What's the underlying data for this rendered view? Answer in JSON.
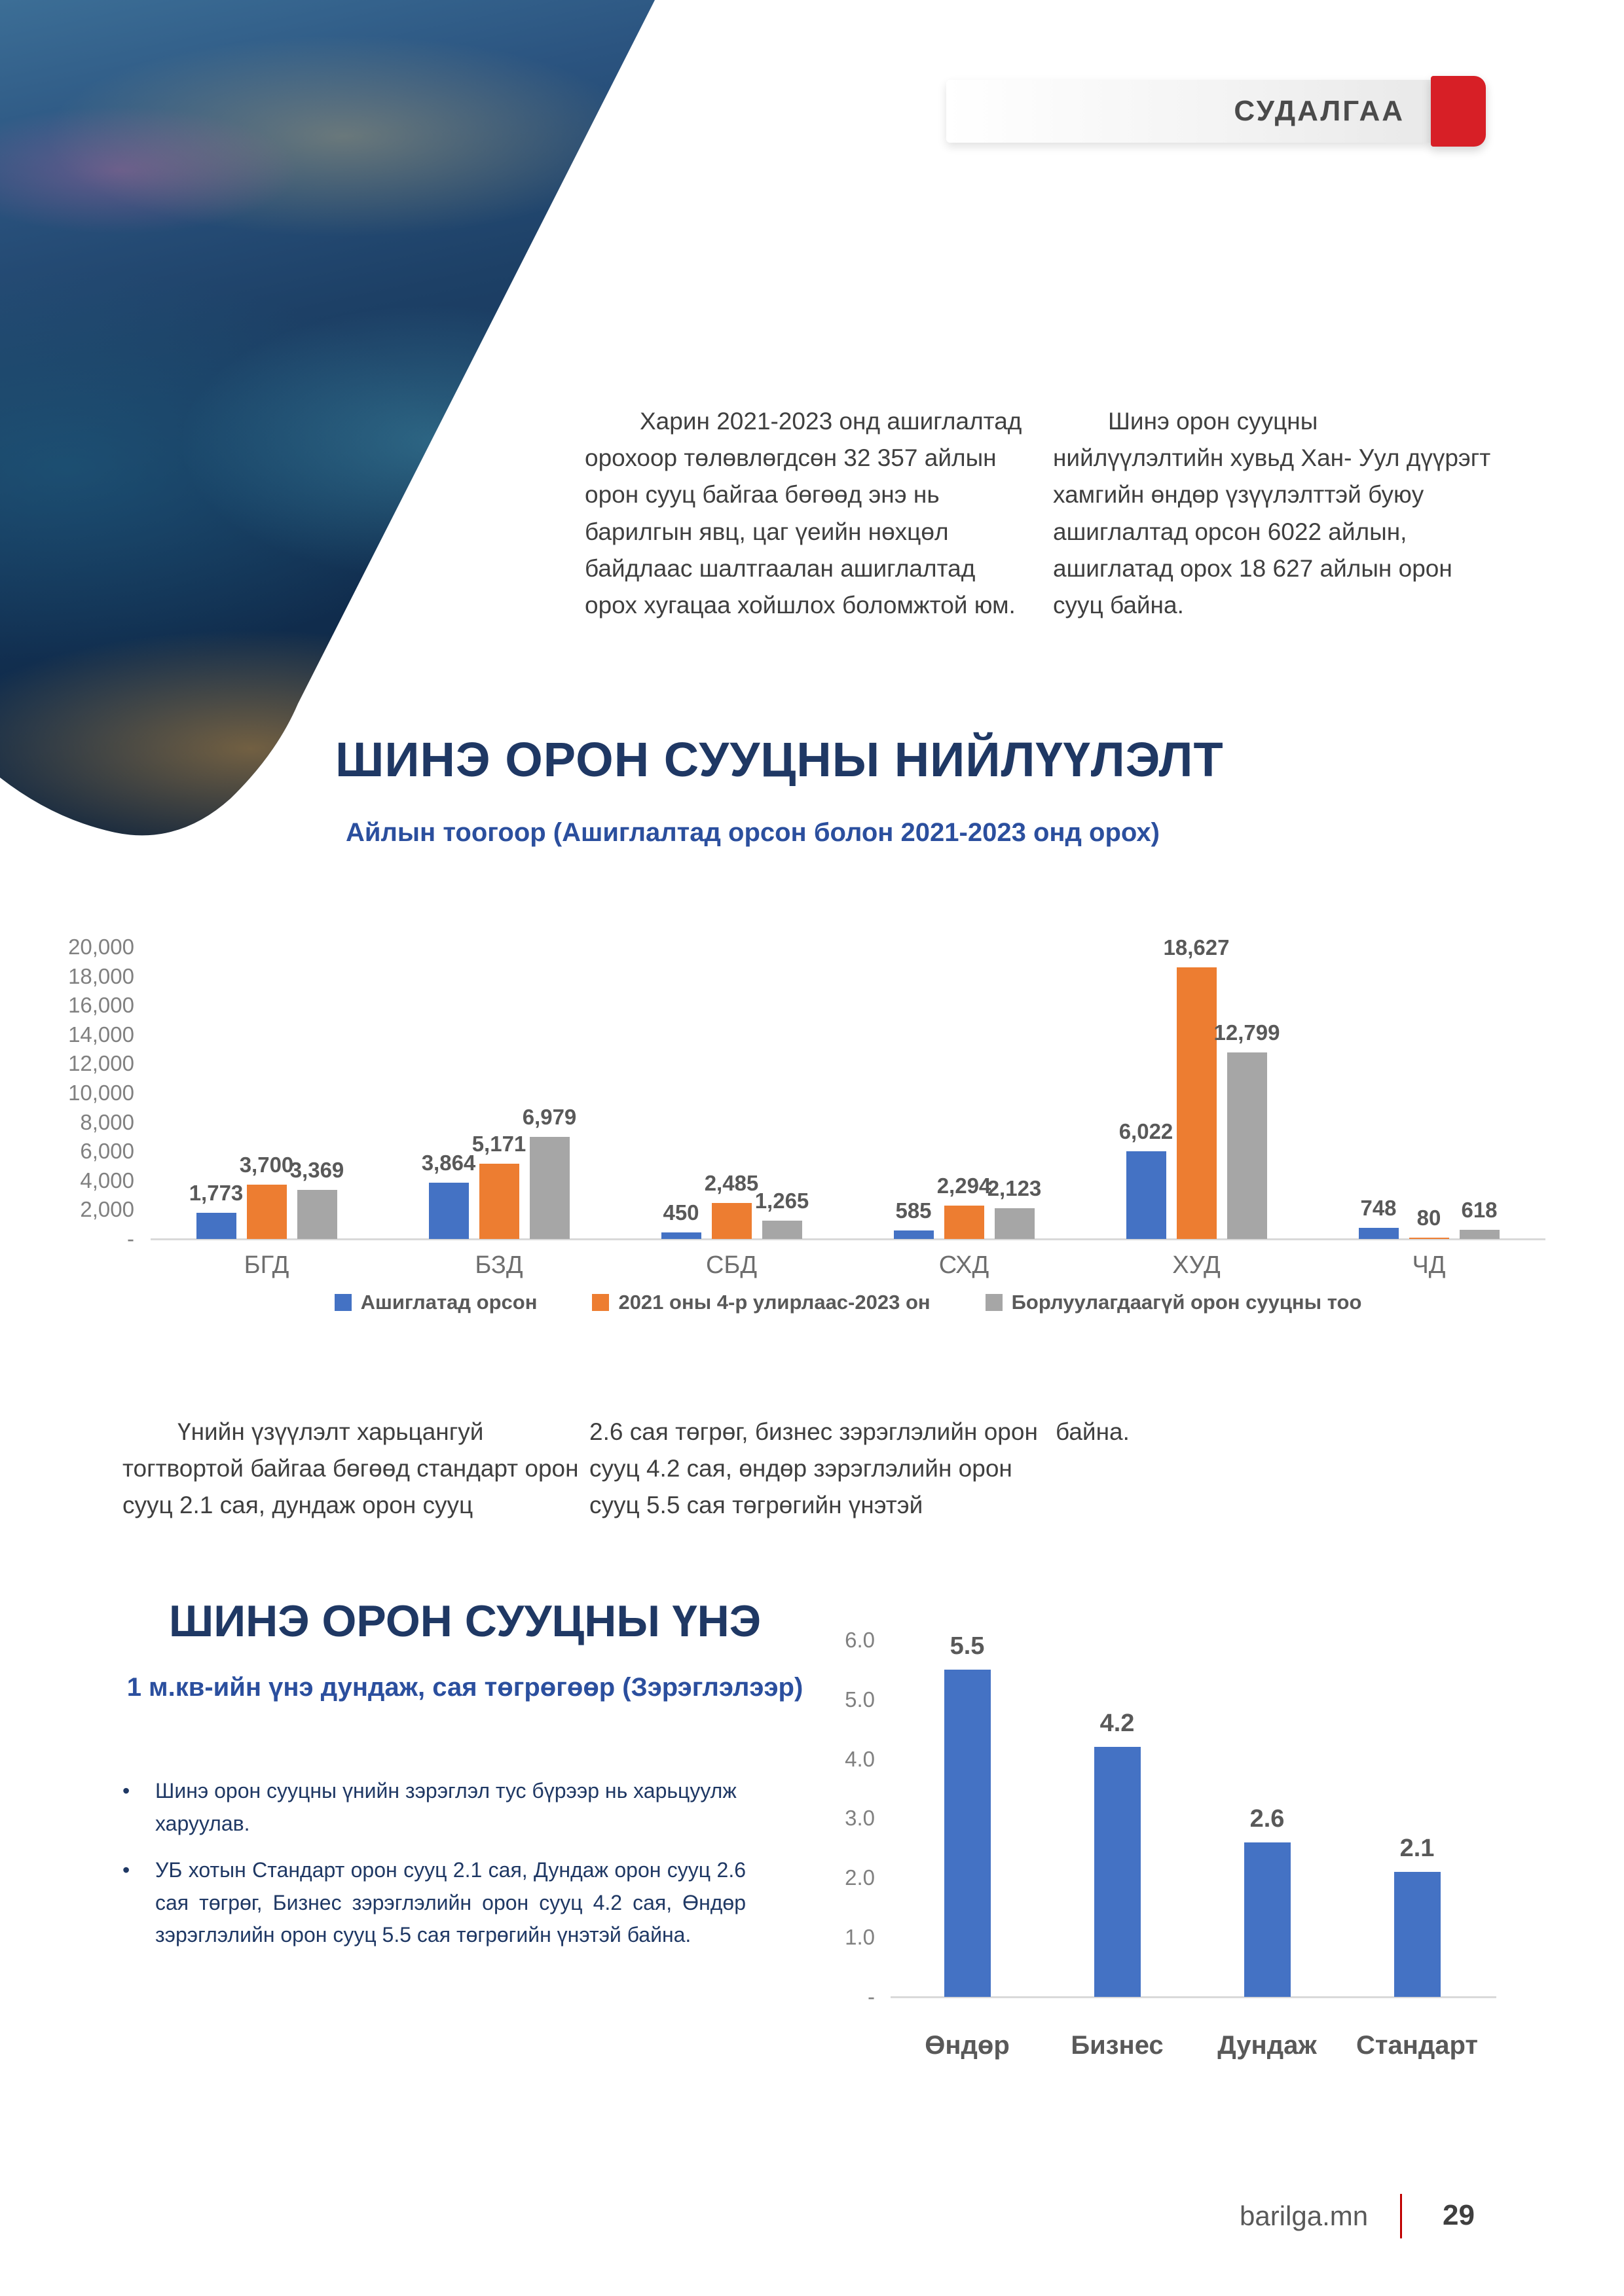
{
  "header": {
    "label": "СУДАЛГАА"
  },
  "intro": {
    "p1": "Харин 2021-2023 онд ашиглалтад орохоор төлөвлөгдсөн 32 357 айлын орон сууц байгаа бөгөөд энэ нь барилгын явц, цаг үеийн нөхцөл байдлаас шалтгаалан ашиглалтад орох хугацаа хойшлох боломжтой юм.",
    "p2": "Шинэ орон сууцны нийлүүлэлтийн хувьд Хан- Уул дүүрэгт хамгийн өндөр үзүүлэлттэй буюу ашиглалтад орсон 6022 айлын, ашиглатад орох 18 627 айлын орон сууц байна."
  },
  "supply_section": {
    "title": "ШИНЭ ОРОН СУУЦНЫ НИЙЛҮҮЛЭЛТ",
    "subtitle": "Айлын тоогоор (Ашиглалтад орсон болон 2021-2023 онд орох)"
  },
  "mid": {
    "col1": "Үнийн үзүүлэлт харьцангуй тогтвортой байгаа бөгөөд стандарт орон сууц 2.1 сая, дундаж орон сууц",
    "col2": "2.6 сая төгрөг, бизнес зэрэглэлийн орон сууц 4.2 сая, өндөр зэрэглэлийн орон сууц 5.5 сая төгрөгийн үнэтэй",
    "col3": "байна."
  },
  "price_section": {
    "title": "ШИНЭ ОРОН СУУЦНЫ ҮНЭ",
    "subtitle": "1 м.кв-ийн үнэ дундаж, сая төгрөгөөр (Зэрэглэлээр)",
    "bullets": [
      "Шинэ орон сууцны үнийн зэрэглэл тус бүрээр нь харьцуулж харуулав.",
      "УБ хотын Стандарт орон сууц 2.1 сая, Дундаж орон сууц 2.6 сая төгрөг, Бизнес зэрэглэлийн орон сууц 4.2 сая, Өндөр зэрэглэлийн орон сууц 5.5 сая төгрөгийн үнэтэй байна."
    ]
  },
  "footer": {
    "site": "barilga.mn",
    "page_number": "29"
  },
  "colors": {
    "accent_red": "#D71F26",
    "title_navy": "#1F3864",
    "subtitle_blue": "#2B4F9E",
    "bar_blue": "#4472C4",
    "bar_orange": "#ED7D31",
    "bar_gray": "#A6A6A6",
    "axis_gray": "#D9D9D9",
    "label_gray": "#595959"
  },
  "chart_data": [
    {
      "type": "bar",
      "title": "ШИНЭ ОРОН СУУЦНЫ НИЙЛҮҮЛЭЛТ",
      "subtitle": "Айлын тоогоор (Ашиглалтад орсон болон 2021-2023 онд орох)",
      "categories": [
        "БГД",
        "БЗД",
        "СБД",
        "СХД",
        "ХУД",
        "ЧД"
      ],
      "series": [
        {
          "name": "Ашиглатад орсон",
          "color": "#4472C4",
          "values": [
            1773,
            3864,
            450,
            585,
            6022,
            748
          ]
        },
        {
          "name": "2021 оны 4-р улирлаас-2023 он",
          "color": "#ED7D31",
          "values": [
            3700,
            5171,
            2485,
            2294,
            18627,
            80
          ]
        },
        {
          "name": "Борлуулагдаагүй орон сууцны тоо",
          "color": "#A6A6A6",
          "values": [
            3369,
            6979,
            1265,
            2123,
            12799,
            618
          ]
        }
      ],
      "ylim": [
        0,
        20000
      ],
      "ytick_labels": [
        "20,000",
        "18,000",
        "16,000",
        "14,000",
        "12,000",
        "10,000",
        "8,000",
        "6,000",
        "4,000",
        "2,000",
        "-"
      ],
      "grid": false,
      "data_labels": true,
      "legend_position": "bottom"
    },
    {
      "type": "bar",
      "title": "ШИНЭ ОРОН СУУЦНЫ ҮНЭ",
      "subtitle": "1 м.кв-ийн үнэ дундаж, сая төгрөгөөр (Зэрэглэлээр)",
      "categories": [
        "Өндөр",
        "Бизнес",
        "Дундаж",
        "Стандарт"
      ],
      "values": [
        5.5,
        4.2,
        2.6,
        2.1
      ],
      "ylim": [
        0,
        6
      ],
      "ytick_labels": [
        "6.0",
        "5.0",
        "4.0",
        "3.0",
        "2.0",
        "1.0",
        "-"
      ],
      "grid": false,
      "data_labels": true,
      "bar_color": "#4472C4",
      "legend_position": "none"
    }
  ]
}
